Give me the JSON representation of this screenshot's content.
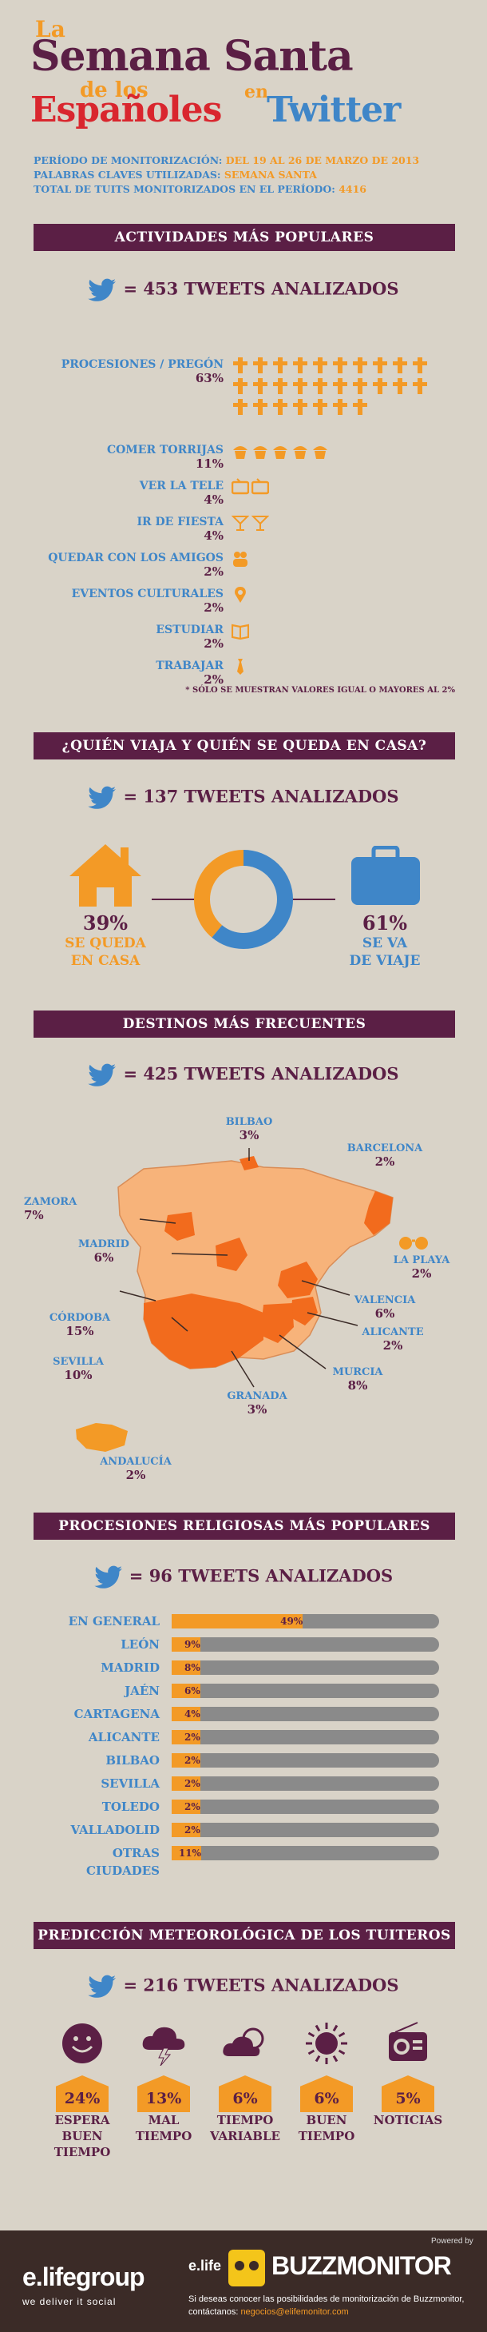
{
  "title": {
    "la": "La",
    "semana_santa": "Semana Santa",
    "de_los": "de los",
    "espanoles": "Españoles",
    "en": "en",
    "twitter": "Twitter"
  },
  "meta": {
    "periodo_label": "PERÍODO DE MONITORIZACIÓN:",
    "periodo_value": "DEL 19 AL 26 DE MARZO DE 2013",
    "palabras_label": "PALABRAS CLAVES UTILIZADAS:",
    "palabras_value": "SEMANA SANTA",
    "total_label": "TOTAL DE TUITS MONITORIZADOS EN EL PERÍODO:",
    "total_value": "4416"
  },
  "actividades": {
    "banner": "ACTIVIDADES MÁS POPULARES",
    "count": "= 453 TWEETS ANALIZADOS",
    "items": [
      {
        "label": "PROCESIONES / PREGÓN",
        "pct": "63%",
        "icon": "cross-icon",
        "n": 27
      },
      {
        "label": "COMER TORRIJAS",
        "pct": "11%",
        "icon": "muffin-icon",
        "n": 5
      },
      {
        "label": "VER LA TELE",
        "pct": "4%",
        "icon": "tv-icon",
        "n": 2
      },
      {
        "label": "IR DE FIESTA",
        "pct": "4%",
        "icon": "cocktail-icon",
        "n": 2
      },
      {
        "label": "QUEDAR CON LOS AMIGOS",
        "pct": "2%",
        "icon": "people-icon",
        "n": 1
      },
      {
        "label": "EVENTOS CULTURALES",
        "pct": "2%",
        "icon": "pin-icon",
        "n": 1
      },
      {
        "label": "ESTUDIAR",
        "pct": "2%",
        "icon": "book-icon",
        "n": 1
      },
      {
        "label": "TRABAJAR",
        "pct": "2%",
        "icon": "tie-icon",
        "n": 1
      }
    ],
    "note": "* SÓLO SE MUESTRAN VALORES IGUAL O MAYORES AL 2%"
  },
  "viaja": {
    "banner": "¿QUIÉN VIAJA Y QUIÉN SE QUEDA EN CASA?",
    "count": "= 137 TWEETS ANALIZADOS",
    "casa_pct": "39%",
    "casa_label1": "SE QUEDA",
    "casa_label2": "EN CASA",
    "casa_value": 39,
    "viaje_pct": "61%",
    "viaje_label1": "SE VA",
    "viaje_label2": "DE VIAJE",
    "viaje_value": 61,
    "colors": {
      "casa": "#f39a26",
      "viaje": "#3f86c8"
    }
  },
  "destinos": {
    "banner": "DESTINOS MÁS FRECUENTES",
    "count": "= 425 TWEETS ANALIZADOS",
    "items": [
      {
        "name": "BILBAO",
        "pct": "3%"
      },
      {
        "name": "BARCELONA",
        "pct": "2%"
      },
      {
        "name": "ZAMORA",
        "pct": "7%"
      },
      {
        "name": "MADRID",
        "pct": "6%"
      },
      {
        "name": "LA PLAYA",
        "pct": "2%"
      },
      {
        "name": "VALENCIA",
        "pct": "6%"
      },
      {
        "name": "CÓRDOBA",
        "pct": "15%"
      },
      {
        "name": "ALICANTE",
        "pct": "2%"
      },
      {
        "name": "SEVILLA",
        "pct": "10%"
      },
      {
        "name": "MURCIA",
        "pct": "8%"
      },
      {
        "name": "GRANADA",
        "pct": "3%"
      },
      {
        "name": "ANDALUCÍA",
        "pct": "2%"
      }
    ]
  },
  "procesiones": {
    "banner": "PROCESIONES RELIGIOSAS MÁS POPULARES",
    "count": "= 96 TWEETS ANALIZADOS",
    "rows": [
      {
        "label": "EN GENERAL",
        "value": 49,
        "text": "49%"
      },
      {
        "label": "LEÓN",
        "value": 9,
        "text": "9%"
      },
      {
        "label": "MADRID",
        "value": 8,
        "text": "8%"
      },
      {
        "label": "JAÉN",
        "value": 6,
        "text": "6%"
      },
      {
        "label": "CARTAGENA",
        "value": 4,
        "text": "4%"
      },
      {
        "label": "ALICANTE",
        "value": 2,
        "text": "2%"
      },
      {
        "label": "BILBAO",
        "value": 2,
        "text": "2%"
      },
      {
        "label": "SEVILLA",
        "value": 2,
        "text": "2%"
      },
      {
        "label": "TOLEDO",
        "value": 2,
        "text": "2%"
      },
      {
        "label": "VALLADOLID",
        "value": 2,
        "text": "2%"
      },
      {
        "label": "OTRAS CIUDADES",
        "value": 11,
        "text": "11%"
      }
    ]
  },
  "meteo": {
    "banner": "PREDICCIÓN METEOROLÓGICA DE LOS TUITEROS",
    "count": "= 216 TWEETS ANALIZADOS",
    "items": [
      {
        "pct": "24%",
        "label1": "ESPERA",
        "label2": "BUEN",
        "label3": "TIEMPO",
        "icon": "smiley-icon"
      },
      {
        "pct": "13%",
        "label1": "MAL",
        "label2": "TIEMPO",
        "label3": "",
        "icon": "storm-cloud-icon"
      },
      {
        "pct": "6%",
        "label1": "TIEMPO",
        "label2": "VARIABLE",
        "label3": "",
        "icon": "cloud-sun-icon"
      },
      {
        "pct": "6%",
        "label1": "BUEN",
        "label2": "TIEMPO",
        "label3": "",
        "icon": "sun-icon"
      },
      {
        "pct": "5%",
        "label1": "NOTICIAS",
        "label2": "",
        "label3": "",
        "icon": "radio-icon"
      }
    ]
  },
  "footer": {
    "elife_logo": "e.lifegroup",
    "tagline": "we deliver it social",
    "powered": "Powered by",
    "elife_small": "e.life",
    "buzz": "BUZZMONITOR",
    "info": "Si deseas conocer las posibilidades de monitorización de Buzzmonitor,",
    "contact_label": "contáctanos:",
    "contact_email": "negocios@elifemonitor.com"
  }
}
